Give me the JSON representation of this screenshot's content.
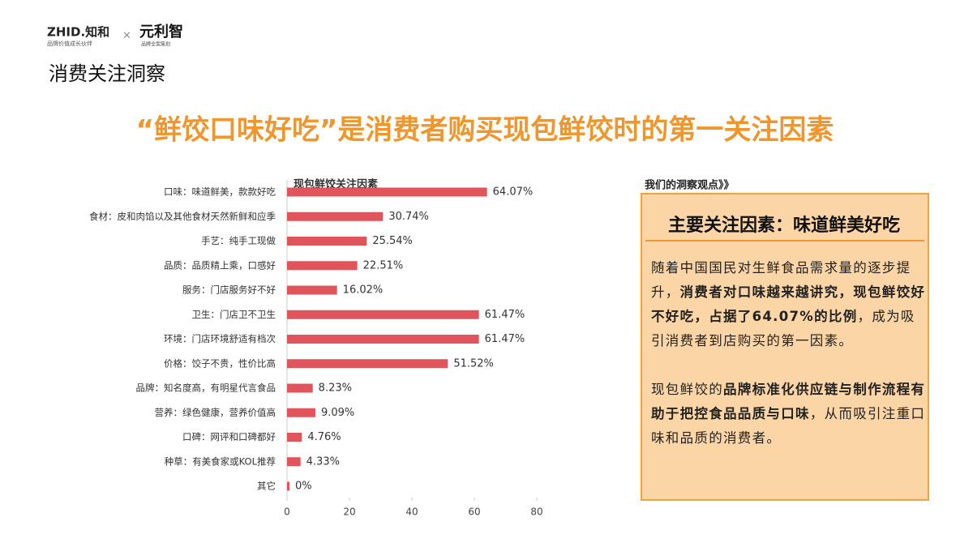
{
  "header": {
    "logo_left": "ZHID.知和",
    "logo_left_tagline": "品牌价值成长伙伴",
    "logo_separator": "×",
    "logo_right": "元利智",
    "logo_right_tagline": "品牌全案策划",
    "section": "消费关注洞察",
    "title": "“鲜饺口味好吃”是消费者购买现包鲜饺时的第一关注因素"
  },
  "chart_data": {
    "type": "bar",
    "orientation": "horizontal",
    "title": "现包鲜饺关注因素",
    "categories": [
      "口味：味道鲜美，款款好吃",
      "食材：皮和肉馅以及其他食材天然新鲜和应季",
      "手艺：纯手工现做",
      "品质：品质精上乘，口感好",
      "服务：门店服务好不好",
      "卫生：门店卫不卫生",
      "环境：门店环境舒适有档次",
      "价格：饺子不贵，性价比高",
      "品牌：知名度高，有明星代言食品",
      "营养：绿色健康，营养价值高",
      "口碑：网评和口碑都好",
      "种草：有美食家或KOL推荐",
      "其它"
    ],
    "values": [
      64.07,
      30.74,
      25.54,
      22.51,
      16.02,
      61.47,
      61.47,
      51.52,
      8.23,
      9.09,
      4.76,
      4.33,
      0
    ],
    "value_labels": [
      "64.07%",
      "30.74%",
      "25.54%",
      "22.51%",
      "16.02%",
      "61.47%",
      "61.47%",
      "51.52%",
      "8.23%",
      "9.09%",
      "4.76%",
      "4.33%",
      "0%"
    ],
    "color": "#e0555b",
    "xlim": [
      0,
      80
    ],
    "xticks": [
      0,
      20,
      40,
      60,
      80
    ],
    "grid": false
  },
  "insight": {
    "label": "我们的洞察观点》》",
    "heading": "主要关注因素：味道鲜美好吃",
    "paragraphs": [
      [
        {
          "text": "随着中国国民对生鲜食品需求量的逐步提升，",
          "bold": false
        },
        {
          "text": "消费者对口味越来越讲究，现包鲜饺好不好吃，占据了64.07%的比例",
          "bold": true
        },
        {
          "text": "，成为吸引消费者到店购买的第一因素。",
          "bold": false
        }
      ],
      [
        {
          "text": "现包鲜饺的",
          "bold": false
        },
        {
          "text": "品牌标准化供应链与制作流程有助于把控食品品质与口味",
          "bold": true
        },
        {
          "text": "，从而吸引注重口味和品质的消费者。",
          "bold": false
        }
      ]
    ]
  }
}
